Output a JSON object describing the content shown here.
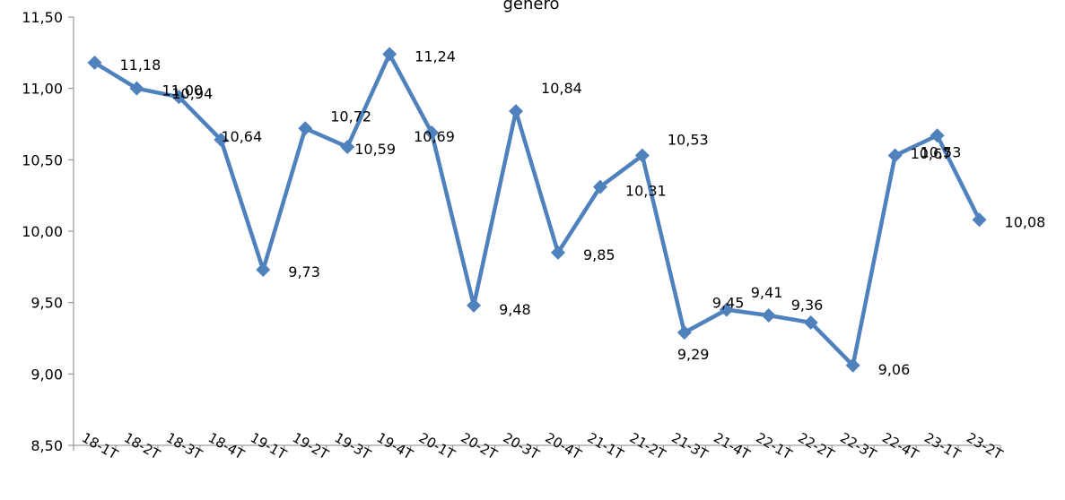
{
  "chart_data": {
    "type": "line",
    "title": "género",
    "xlabel": "",
    "ylabel": "",
    "categories": [
      "18-1T",
      "18-2T",
      "18-3T",
      "18-4T",
      "19-1T",
      "19-2T",
      "19-3T",
      "19-4T",
      "20-1T",
      "20-2T",
      "20-3T",
      "20-4T",
      "21-1T",
      "21-2T",
      "21-3T",
      "21-4T",
      "22-1T",
      "22-2T",
      "22-3T",
      "22-4T",
      "23-1T",
      "23-2T"
    ],
    "y_ticks": [
      "8,50",
      "9,00",
      "9,50",
      "10,00",
      "10,50",
      "11,00",
      "11,50"
    ],
    "ylim": [
      8.5,
      11.5
    ],
    "grid": false,
    "legend": "none",
    "series": [
      {
        "color": "#4f81bd",
        "values": [
          11.18,
          11.0,
          10.94,
          10.64,
          9.73,
          10.72,
          10.59,
          11.24,
          10.69,
          9.48,
          10.84,
          9.85,
          10.31,
          10.53,
          9.29,
          9.45,
          9.41,
          9.36,
          9.06,
          10.53,
          10.67,
          10.08
        ],
        "labels": [
          "11,18",
          "11,00",
          "10,94",
          "10,64",
          "9,73",
          "10,72",
          "10,59",
          "11,24",
          "10,69",
          "9,48",
          "10,84",
          "9,85",
          "10,31",
          "10,53",
          "9,29",
          "9,45",
          "9,41",
          "9,36",
          "9,06",
          "10,53",
          "10,67",
          "10,08"
        ]
      }
    ]
  }
}
